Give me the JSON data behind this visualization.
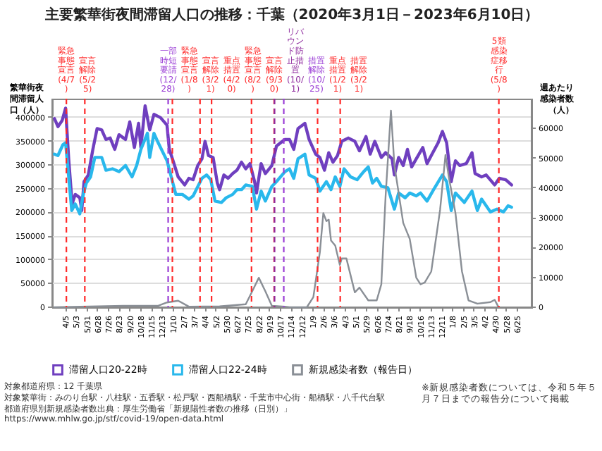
{
  "chart_data": {
    "type": "line",
    "title": "主要繁華街夜間滞留人口の推移：千葉（2020年3月1日－2023年6月10日）",
    "ylabel": "繁華街夜間滞留人口（人）",
    "y2label": "週あたり感染者数（人）",
    "xlim": [
      "2020-03-01",
      "2023-08-01"
    ],
    "xticks": [
      {
        "value": "2020-04-05",
        "label": "4/5"
      },
      {
        "value": "2020-05-03",
        "label": "5/3"
      },
      {
        "value": "2020-05-31",
        "label": "5/31"
      },
      {
        "value": "2020-06-28",
        "label": "6/28"
      },
      {
        "value": "2020-07-26",
        "label": "7/26"
      },
      {
        "value": "2020-08-23",
        "label": "8/23"
      },
      {
        "value": "2020-09-20",
        "label": "9/20"
      },
      {
        "value": "2020-10-18",
        "label": "10/18"
      },
      {
        "value": "2020-11-15",
        "label": "11/15"
      },
      {
        "value": "2020-12-13",
        "label": "12/13"
      },
      {
        "value": "2021-01-10",
        "label": "1/10"
      },
      {
        "value": "2021-02-07",
        "label": "2/7"
      },
      {
        "value": "2021-03-07",
        "label": "3/7"
      },
      {
        "value": "2021-04-04",
        "label": "4/4"
      },
      {
        "value": "2021-05-02",
        "label": "5/2"
      },
      {
        "value": "2021-05-30",
        "label": "5/30"
      },
      {
        "value": "2021-06-27",
        "label": "6/27"
      },
      {
        "value": "2021-07-25",
        "label": "7/25"
      },
      {
        "value": "2021-08-22",
        "label": "8/22"
      },
      {
        "value": "2021-09-19",
        "label": "9/19"
      },
      {
        "value": "2021-10-17",
        "label": "10/17"
      },
      {
        "value": "2021-11-14",
        "label": "11/14"
      },
      {
        "value": "2021-12-12",
        "label": "12/12"
      },
      {
        "value": "2022-01-09",
        "label": "1/9"
      },
      {
        "value": "2022-02-06",
        "label": "2/6"
      },
      {
        "value": "2022-03-06",
        "label": "3/6"
      },
      {
        "value": "2022-04-03",
        "label": "4/3"
      },
      {
        "value": "2022-05-01",
        "label": "5/1"
      },
      {
        "value": "2022-05-29",
        "label": "5/29"
      },
      {
        "value": "2022-06-26",
        "label": "6/26"
      },
      {
        "value": "2022-07-24",
        "label": "7/24"
      },
      {
        "value": "2022-08-21",
        "label": "8/21"
      },
      {
        "value": "2022-09-18",
        "label": "9/18"
      },
      {
        "value": "2022-10-16",
        "label": "10/16"
      },
      {
        "value": "2022-11-13",
        "label": "11/13"
      },
      {
        "value": "2022-12-11",
        "label": "12/11"
      },
      {
        "value": "2023-01-08",
        "label": "1/8"
      },
      {
        "value": "2023-02-05",
        "label": "2/5"
      },
      {
        "value": "2023-03-05",
        "label": "3/5"
      },
      {
        "value": "2023-04-02",
        "label": "4/2"
      },
      {
        "value": "2023-04-30",
        "label": "4/30"
      },
      {
        "value": "2023-05-28",
        "label": "5/28"
      },
      {
        "value": "2023-06-25",
        "label": "6/25"
      }
    ],
    "ylim": [
      0,
      440000
    ],
    "yticks": [
      0,
      50000,
      100000,
      150000,
      200000,
      250000,
      300000,
      350000,
      400000
    ],
    "y2lim": [
      0,
      70000
    ],
    "y2ticks": [
      0,
      10000,
      20000,
      30000,
      40000,
      50000,
      60000
    ],
    "grid": "y",
    "legend": "bottom",
    "marker": "none",
    "line_style": "solid",
    "series": [
      {
        "name": "滞留人口20-22時",
        "color": "#6f3fbf",
        "x": [
          "2020-03-07",
          "2020-03-16",
          "2020-03-27",
          "2020-04-05",
          "2020-04-13",
          "2020-04-22",
          "2020-04-30",
          "2020-05-12",
          "2020-05-17",
          "2020-05-23",
          "2020-06-03",
          "2020-06-15",
          "2020-06-26",
          "2020-07-08",
          "2020-07-19",
          "2020-07-30",
          "2020-08-11",
          "2020-08-22",
          "2020-09-08",
          "2020-09-19",
          "2020-10-01",
          "2020-10-12",
          "2020-10-18",
          "2020-10-29",
          "2020-11-10",
          "2020-11-21",
          "2020-12-08",
          "2020-12-25",
          "2020-12-31",
          "2021-01-11",
          "2021-01-23",
          "2021-02-09",
          "2021-02-20",
          "2021-03-03",
          "2021-03-15",
          "2021-03-26",
          "2021-04-03",
          "2021-04-12",
          "2021-04-24",
          "2021-05-05",
          "2021-05-11",
          "2021-05-22",
          "2021-06-02",
          "2021-06-14",
          "2021-06-25",
          "2021-07-07",
          "2021-07-18",
          "2021-07-29",
          "2021-08-10",
          "2021-08-15",
          "2021-08-27",
          "2021-09-07",
          "2021-09-24",
          "2021-10-06",
          "2021-10-17",
          "2021-10-28",
          "2021-11-09",
          "2021-11-20",
          "2021-12-01",
          "2021-12-19",
          "2021-12-30",
          "2022-01-16",
          "2022-01-27",
          "2022-02-08",
          "2022-02-19",
          "2022-03-02",
          "2022-03-14",
          "2022-03-25",
          "2022-04-11",
          "2022-04-28",
          "2022-05-10",
          "2022-05-27",
          "2022-06-07",
          "2022-06-19",
          "2022-07-06",
          "2022-07-17",
          "2022-08-03",
          "2022-08-09",
          "2022-08-20",
          "2022-09-01",
          "2022-09-12",
          "2022-09-23",
          "2022-10-05",
          "2022-10-22",
          "2022-11-02",
          "2022-11-13",
          "2022-12-01",
          "2022-12-12",
          "2022-12-23",
          "2023-01-04",
          "2023-01-15",
          "2023-01-26",
          "2023-02-12",
          "2023-02-27",
          "2023-03-07",
          "2023-03-24",
          "2023-04-05",
          "2023-04-27",
          "2023-05-09",
          "2023-05-26",
          "2023-06-10"
        ],
        "values": [
          398000,
          381000,
          394000,
          420000,
          313000,
          218000,
          238000,
          231000,
          204000,
          265000,
          279000,
          333000,
          377000,
          374000,
          354000,
          357000,
          333000,
          364000,
          354000,
          391000,
          337000,
          388000,
          337000,
          425000,
          374000,
          407000,
          400000,
          384000,
          333000,
          306000,
          275000,
          258000,
          272000,
          269000,
          299000,
          313000,
          350000,
          320000,
          316000,
          262000,
          248000,
          279000,
          272000,
          282000,
          289000,
          306000,
          292000,
          303000,
          265000,
          241000,
          303000,
          282000,
          299000,
          340000,
          347000,
          354000,
          354000,
          333000,
          377000,
          388000,
          354000,
          323000,
          316000,
          289000,
          326000,
          306000,
          320000,
          350000,
          357000,
          350000,
          330000,
          360000,
          323000,
          350000,
          316000,
          326000,
          313000,
          279000,
          316000,
          299000,
          333000,
          296000,
          313000,
          337000,
          303000,
          320000,
          347000,
          371000,
          347000,
          265000,
          309000,
          299000,
          303000,
          326000,
          282000,
          275000,
          279000,
          258000,
          272000,
          269000,
          258000
        ]
      },
      {
        "name": "滞留人口22-24時",
        "color": "#29b8ec",
        "x": [
          "2020-03-07",
          "2020-03-16",
          "2020-03-29",
          "2020-04-05",
          "2020-04-13",
          "2020-04-21",
          "2020-04-30",
          "2020-05-12",
          "2020-05-21",
          "2020-05-29",
          "2020-06-09",
          "2020-06-20",
          "2020-07-08",
          "2020-07-19",
          "2020-08-05",
          "2020-08-22",
          "2020-09-08",
          "2020-09-25",
          "2020-10-07",
          "2020-10-18",
          "2020-11-04",
          "2020-11-10",
          "2020-11-21",
          "2020-12-02",
          "2020-12-25",
          "2021-01-06",
          "2021-01-17",
          "2021-02-03",
          "2021-02-20",
          "2021-03-03",
          "2021-03-26",
          "2021-04-07",
          "2021-04-18",
          "2021-04-29",
          "2021-05-16",
          "2021-05-28",
          "2021-06-14",
          "2021-06-25",
          "2021-07-07",
          "2021-07-18",
          "2021-08-04",
          "2021-08-15",
          "2021-08-27",
          "2021-09-07",
          "2021-09-24",
          "2021-10-06",
          "2021-10-28",
          "2021-11-09",
          "2021-11-20",
          "2021-12-01",
          "2021-12-19",
          "2021-12-30",
          "2022-01-16",
          "2022-01-27",
          "2022-02-13",
          "2022-02-25",
          "2022-03-08",
          "2022-03-20",
          "2022-03-31",
          "2022-04-17",
          "2022-05-04",
          "2022-05-21",
          "2022-06-02",
          "2022-06-13",
          "2022-06-24",
          "2022-07-06",
          "2022-07-23",
          "2022-08-09",
          "2022-08-20",
          "2022-09-06",
          "2022-09-18",
          "2022-10-05",
          "2022-10-16",
          "2022-11-02",
          "2022-11-19",
          "2022-12-12",
          "2022-12-23",
          "2023-01-04",
          "2023-01-15",
          "2023-02-07",
          "2023-02-27",
          "2023-03-13",
          "2023-03-24",
          "2023-04-16",
          "2023-05-03",
          "2023-05-20",
          "2023-06-01",
          "2023-06-10"
        ],
        "values": [
          323000,
          320000,
          343000,
          347000,
          275000,
          204000,
          218000,
          197000,
          238000,
          262000,
          275000,
          316000,
          316000,
          289000,
          292000,
          286000,
          299000,
          275000,
          299000,
          333000,
          367000,
          316000,
          367000,
          347000,
          309000,
          272000,
          238000,
          238000,
          228000,
          235000,
          272000,
          279000,
          269000,
          224000,
          221000,
          231000,
          238000,
          248000,
          248000,
          258000,
          255000,
          207000,
          245000,
          224000,
          255000,
          265000,
          286000,
          292000,
          272000,
          313000,
          323000,
          279000,
          272000,
          245000,
          265000,
          248000,
          275000,
          255000,
          292000,
          275000,
          269000,
          286000,
          296000,
          262000,
          272000,
          255000,
          252000,
          207000,
          241000,
          231000,
          241000,
          235000,
          241000,
          224000,
          248000,
          279000,
          265000,
          204000,
          241000,
          221000,
          245000,
          204000,
          228000,
          201000,
          207000,
          201000,
          214000,
          211000
        ]
      },
      {
        "name": "新規感染者数（報告日）",
        "color": "#8a8f96",
        "axis": "y2",
        "x": [
          "2020-03-07",
          "2020-09-02",
          "2020-12-02",
          "2020-12-25",
          "2021-01-23",
          "2021-02-20",
          "2021-05-11",
          "2021-07-18",
          "2021-08-04",
          "2021-08-21",
          "2021-09-07",
          "2021-09-24",
          "2021-10-28",
          "2021-11-09",
          "2021-12-24",
          "2022-01-10",
          "2022-01-27",
          "2022-02-05",
          "2022-02-13",
          "2022-02-19",
          "2022-02-25",
          "2022-03-08",
          "2022-03-20",
          "2022-03-25",
          "2022-04-06",
          "2022-04-28",
          "2022-05-10",
          "2022-06-02",
          "2022-06-24",
          "2022-07-06",
          "2022-07-17",
          "2022-07-31",
          "2022-08-09",
          "2022-09-01",
          "2022-09-18",
          "2022-10-05",
          "2022-10-16",
          "2022-10-27",
          "2022-11-13",
          "2022-12-06",
          "2022-12-20",
          "2022-12-29",
          "2023-01-15",
          "2023-02-01",
          "2023-02-18",
          "2023-03-13",
          "2023-04-16",
          "2023-04-27",
          "2023-05-07"
        ],
        "values": [
          0,
          500,
          500,
          1600,
          2200,
          200,
          300,
          1000,
          5400,
          9900,
          5400,
          500,
          200,
          0,
          0,
          3400,
          18500,
          31600,
          28900,
          29400,
          22400,
          20700,
          14200,
          16400,
          16400,
          5000,
          6600,
          2300,
          2300,
          7700,
          37000,
          66000,
          47700,
          28300,
          22900,
          9900,
          7700,
          8300,
          12000,
          32700,
          51100,
          43500,
          31600,
          12000,
          2300,
          1200,
          1700,
          2500,
          100
        ]
      }
    ],
    "ref_lines": [
      {
        "axis": "x",
        "value": "2020-04-07",
        "label": "緊急事態宣言(4/7)",
        "color": "#ff2a2a",
        "line_style": "dashed"
      },
      {
        "axis": "x",
        "value": "2020-05-25",
        "label": "宣言解除(5/25)",
        "color": "#ff2a2a",
        "line_style": "dashed"
      },
      {
        "axis": "x",
        "value": "2020-12-28",
        "label": "一部時短要請(12/28)",
        "color": "#9b3fd6",
        "line_style": "dashed"
      },
      {
        "axis": "x",
        "value": "2021-01-08",
        "label": "緊急事態宣言(1/8)",
        "color": "#ff2a2a",
        "line_style": "dashed"
      },
      {
        "axis": "x",
        "value": "2021-03-21",
        "label": "宣言解除(3/21)",
        "color": "#ff2a2a",
        "line_style": "dashed"
      },
      {
        "axis": "x",
        "value": "2021-04-20",
        "label": "重点措置(4/20)",
        "color": "#ff2a2a",
        "line_style": "dashed"
      },
      {
        "axis": "x",
        "value": "2021-08-02",
        "label": "緊急事態宣言(8/2)",
        "color": "#ff2a2a",
        "line_style": "dashed"
      },
      {
        "axis": "x",
        "value": "2021-09-30",
        "label": "宣言解除(9/30)",
        "color": "#ff2a2a",
        "line_style": "dashed"
      },
      {
        "axis": "x",
        "value": "2021-10-01",
        "label": "リバウンド防止措置(10/1)",
        "color": "#8e2a9e",
        "line_style": "dashed"
      },
      {
        "axis": "x",
        "value": "2021-10-25",
        "label": "措置解除(10/25)",
        "color": "#9b3fd6",
        "line_style": "dashed"
      },
      {
        "axis": "x",
        "value": "2022-01-21",
        "label": "重点措置(1/21)",
        "color": "#ff2a2a",
        "line_style": "dashed"
      },
      {
        "axis": "x",
        "value": "2022-03-21",
        "label": "措置解除(3/21)",
        "color": "#ff2a2a",
        "line_style": "dashed"
      },
      {
        "axis": "x",
        "value": "2023-05-08",
        "label": "5類感染症移行(5/8)",
        "color": "#ff2a2a",
        "line_style": "dashed"
      }
    ],
    "annotations": [
      "対象都道府県：12 千葉県",
      "対象繁華街：みのり台駅・八柱駅・五香駅・松戸駅・西船橋駅・千葉市中心街・船橋駅・八千代台駅",
      "都道府県別新規感染者数出典：厚生労働省「新規陽性者数の推移（日別）」https://www.mhlw.go.jp/stf/covid-19/open-data.html",
      "※新規感染者数については、令和５年５月７日までの報告分について掲載"
    ]
  }
}
